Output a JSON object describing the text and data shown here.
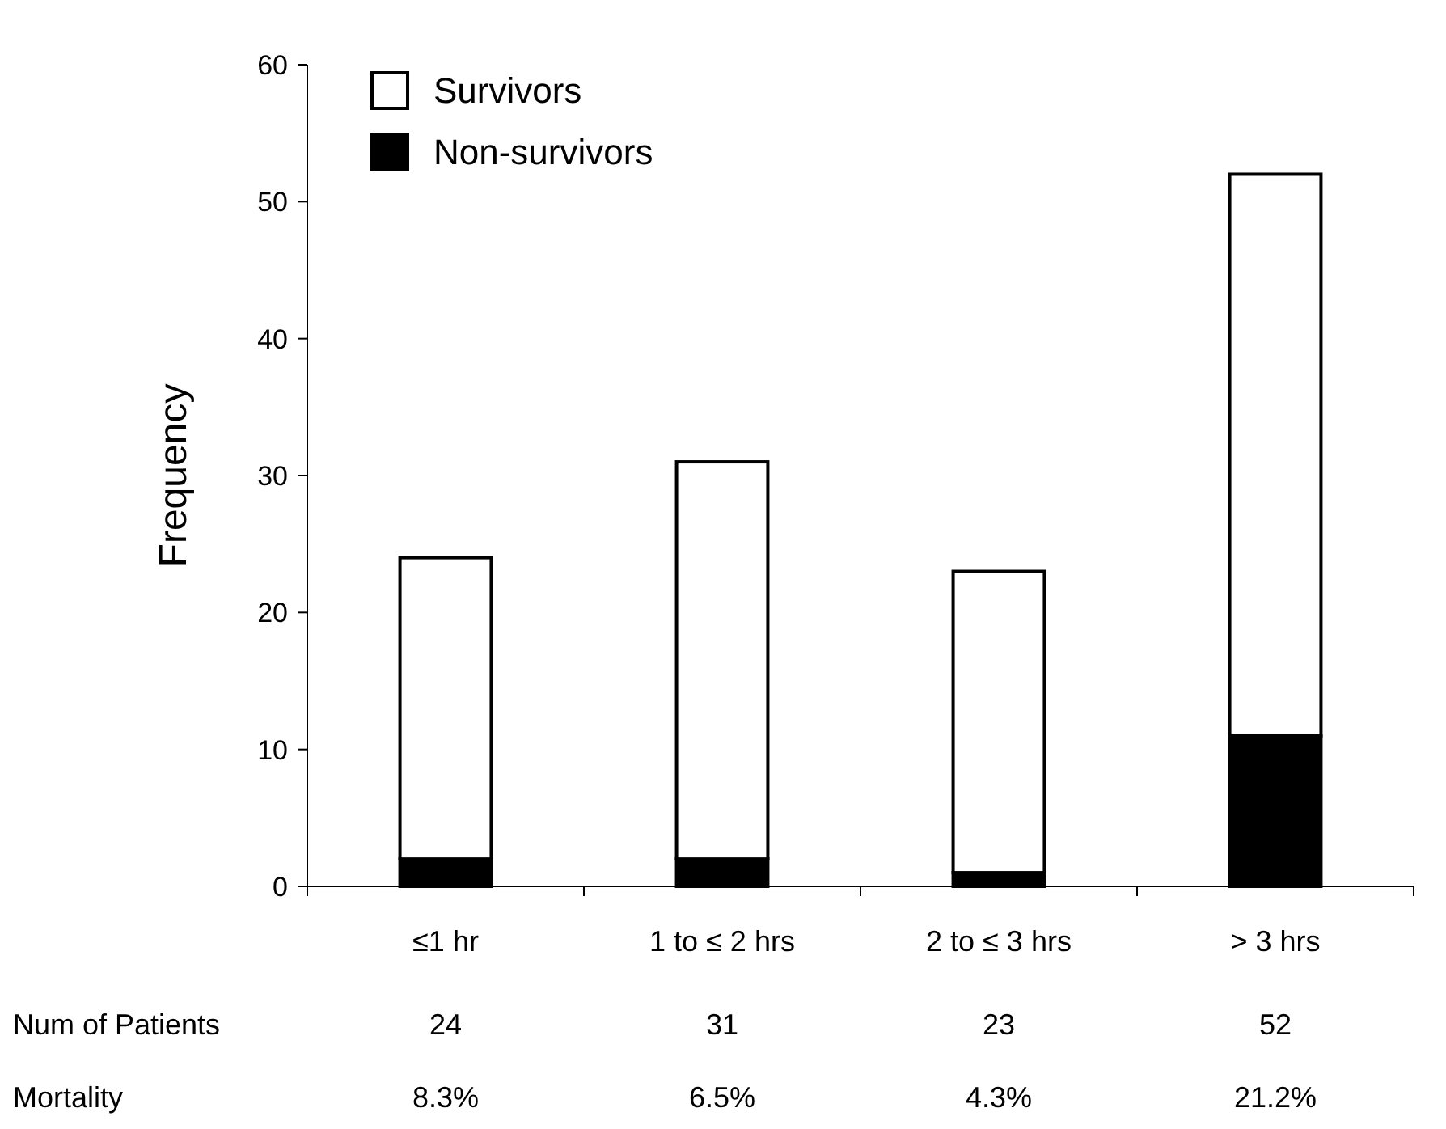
{
  "chart_data": {
    "type": "bar",
    "stacked": true,
    "ylabel": "Frequency",
    "categories": [
      "≤1 hr",
      "1 to ≤ 2 hrs",
      "2 to ≤ 3 hrs",
      "> 3 hrs"
    ],
    "series": [
      {
        "name": "Non-survivors",
        "color": "#000000",
        "values": [
          2,
          2,
          1,
          11
        ]
      },
      {
        "name": "Survivors",
        "color": "#ffffff",
        "values": [
          22,
          29,
          22,
          41
        ]
      }
    ],
    "ylim": [
      0,
      60
    ],
    "yticks": [
      0,
      10,
      20,
      30,
      40,
      50,
      60
    ],
    "legend": "top left",
    "annotations": [
      "Num of Patients",
      "24",
      "31",
      "23",
      "52",
      "Mortality",
      "8.3%",
      "6.5%",
      "4.3%",
      "21.2%"
    ]
  }
}
